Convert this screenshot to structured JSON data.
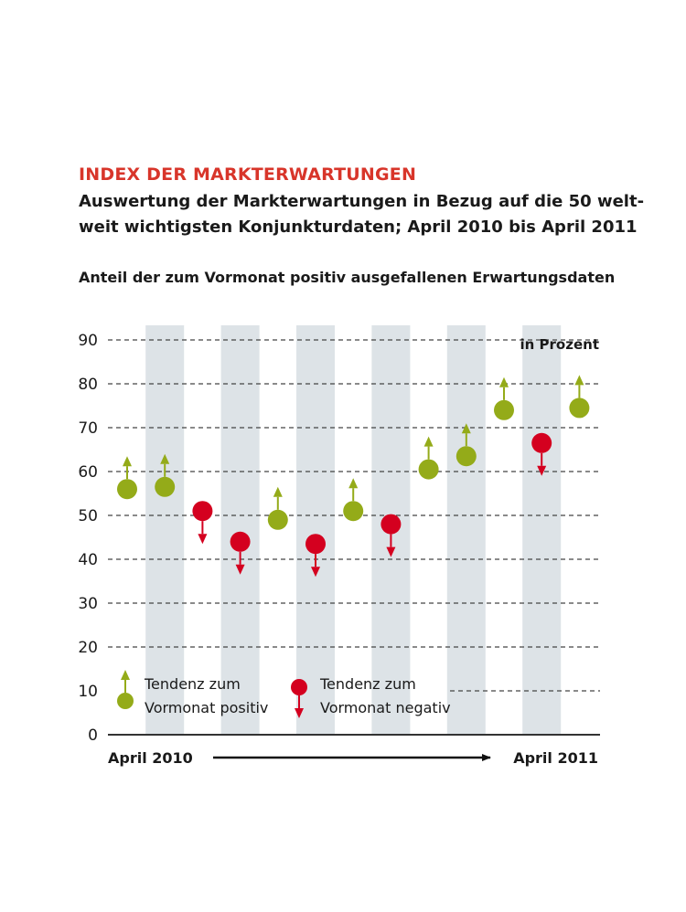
{
  "header": {
    "title": "INDEX DER MARKTERWARTUNGEN",
    "subtitle_line1": "Auswertung der Markterwartungen in Bezug auf die 50 welt-",
    "subtitle_line2": "weit wichtigsten Konjunkturdaten; April 2010 bis April 2011",
    "caption": "Anteil der zum Vormonat positiv ausgefallenen Erwartungsdaten"
  },
  "colors": {
    "positive": "#94ab19",
    "negative": "#d4001f",
    "title": "#d8352a",
    "band": "#dde3e7",
    "grid": "#444444"
  },
  "chart_data": {
    "type": "scatter",
    "unit": "in Prozent",
    "ylim": [
      0,
      90
    ],
    "yticks": [
      0,
      10,
      20,
      30,
      40,
      50,
      60,
      70,
      80,
      90
    ],
    "grid": true,
    "start_label": "April 2010",
    "end_label": "April 2011",
    "values": [
      56,
      56.5,
      51,
      44,
      49,
      43.5,
      51,
      48,
      60.5,
      63.5,
      74,
      66.5,
      74.5
    ],
    "trend": [
      "positive",
      "positive",
      "negative",
      "negative",
      "positive",
      "negative",
      "positive",
      "negative",
      "positive",
      "positive",
      "positive",
      "negative",
      "positive"
    ],
    "legend": [
      {
        "key": "positive",
        "line1": "Tendenz zum",
        "line2": "Vormonat positiv"
      },
      {
        "key": "negative",
        "line1": "Tendenz zum",
        "line2": "Vormonat negativ"
      }
    ]
  }
}
